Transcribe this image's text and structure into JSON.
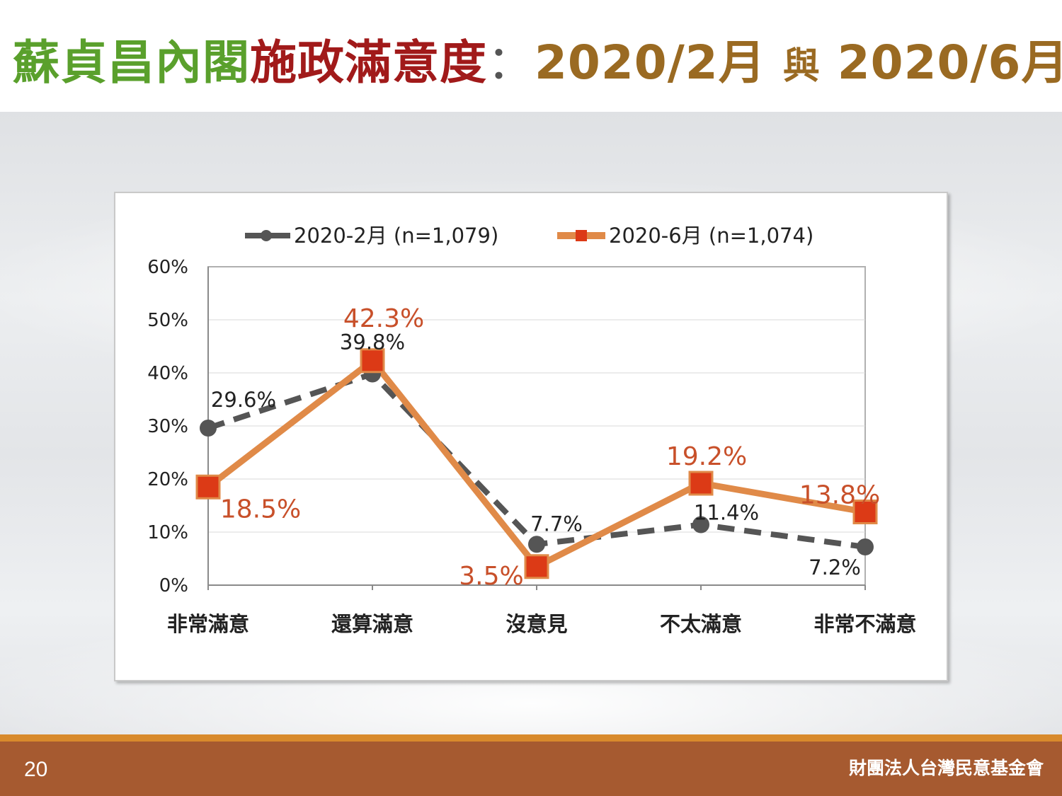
{
  "title": {
    "part_green": "蘇貞昌內閣",
    "part_red": "施政滿意度",
    "separator": "：",
    "part_brown_a": "2020/2月",
    "connector": "與",
    "part_brown_b": "2020/6月"
  },
  "footer": {
    "page_number": "20",
    "organization": "財團法人台灣民意基金會"
  },
  "colors": {
    "title_green": "#5aa02c",
    "title_red": "#a11a1a",
    "title_brown": "#9a6a22",
    "series_feb": "#555555",
    "series_jun": "#e08a48",
    "marker_jun": "#dc3a16",
    "label_jun": "#c8502a",
    "footer_bar": "#a65a30",
    "footer_strip": "#d88a2c"
  },
  "chart_data": {
    "type": "line",
    "categories": [
      "非常滿意",
      "還算滿意",
      "沒意見",
      "不太滿意",
      "非常不滿意"
    ],
    "series": [
      {
        "name": "2020-2月 (n=1,079)",
        "values": [
          29.6,
          39.8,
          7.7,
          11.4,
          7.2
        ],
        "labels": [
          "29.6%",
          "39.8%",
          "7.7%",
          "11.4%",
          "7.2%"
        ],
        "style": "dashed",
        "marker": "circle"
      },
      {
        "name": "2020-6月 (n=1,074)",
        "values": [
          18.5,
          42.3,
          3.5,
          19.2,
          13.8
        ],
        "labels": [
          "18.5%",
          "42.3%",
          "3.5%",
          "19.2%",
          "13.8%"
        ],
        "style": "solid",
        "marker": "square"
      }
    ],
    "yticks": [
      "0%",
      "10%",
      "20%",
      "30%",
      "40%",
      "50%",
      "60%"
    ],
    "ylim": [
      0,
      60
    ],
    "grid": true,
    "legend": "top"
  }
}
